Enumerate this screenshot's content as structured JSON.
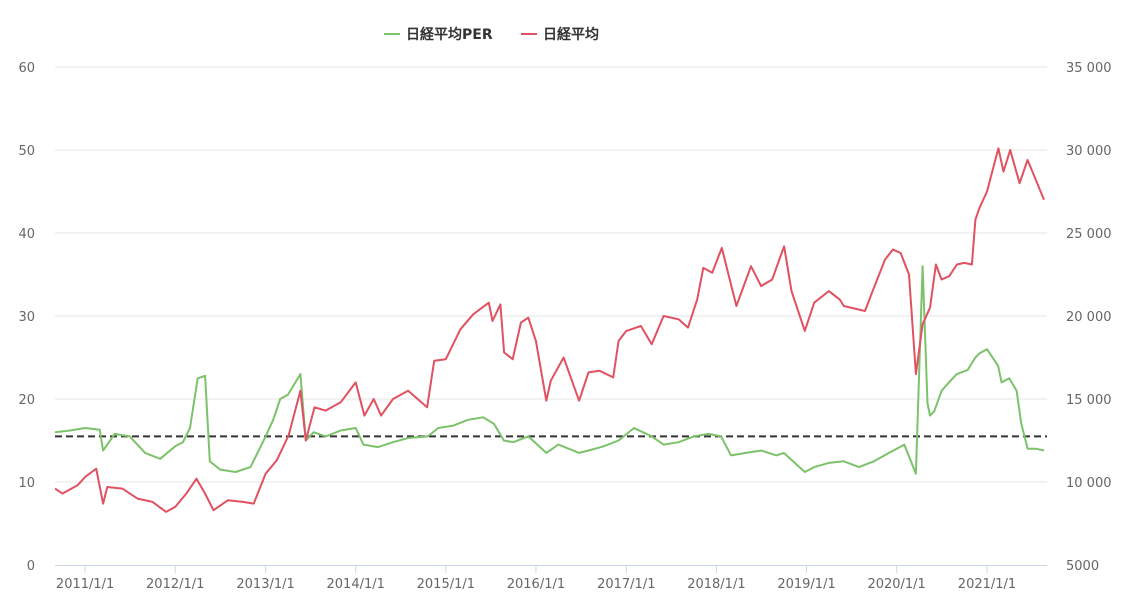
{
  "chart_data": {
    "type": "line",
    "legend": {
      "placement": "top-center"
    },
    "series": [
      {
        "name": "日経平均PER",
        "axis": "left",
        "color": "#7cc26a",
        "x": [
          "2010/9/1",
          "2010/11/1",
          "2011/1/1",
          "2011/3/1",
          "2011/3/15",
          "2011/5/1",
          "2011/7/1",
          "2011/9/1",
          "2011/11/1",
          "2012/1/1",
          "2012/2/1",
          "2012/3/1",
          "2012/4/1",
          "2012/5/1",
          "2012/5/20",
          "2012/7/1",
          "2012/9/1",
          "2012/11/1",
          "2013/1/1",
          "2013/2/1",
          "2013/3/1",
          "2013/4/1",
          "2013/5/22",
          "2013/6/13",
          "2013/7/15",
          "2013/9/1",
          "2013/11/1",
          "2014/1/1",
          "2014/2/1",
          "2014/4/1",
          "2014/6/1",
          "2014/8/1",
          "2014/10/20",
          "2014/12/1",
          "2015/2/1",
          "2015/4/1",
          "2015/6/1",
          "2015/7/15",
          "2015/8/24",
          "2015/10/1",
          "2015/12/1",
          "2016/2/12",
          "2016/4/1",
          "2016/6/24",
          "2016/8/1",
          "2016/10/1",
          "2016/12/1",
          "2017/2/1",
          "2017/4/14",
          "2017/6/1",
          "2017/8/1",
          "2017/10/1",
          "2017/12/1",
          "2018/1/20",
          "2018/3/1",
          "2018/5/1",
          "2018/7/1",
          "2018/9/1",
          "2018/10/1",
          "2018/12/25",
          "2019/2/1",
          "2019/4/1",
          "2019/6/1",
          "2019/8/1",
          "2019/10/1",
          "2019/12/1",
          "2020/2/1",
          "2020/3/19",
          "2020/4/15",
          "2020/5/5",
          "2020/5/15",
          "2020/6/1",
          "2020/7/1",
          "2020/8/15",
          "2020/9/1",
          "2020/10/15",
          "2020/11/15",
          "2020/12/1",
          "2021/1/1",
          "2021/2/15",
          "2021/3/1",
          "2021/4/1",
          "2021/5/1",
          "2021/5/20",
          "2021/6/15",
          "2021/7/20",
          "2021/8/20"
        ],
        "values": [
          16.0,
          16.2,
          16.5,
          16.3,
          13.8,
          15.8,
          15.5,
          13.5,
          12.8,
          14.3,
          14.8,
          16.5,
          22.5,
          22.8,
          12.5,
          11.5,
          11.2,
          11.8,
          15.5,
          17.5,
          20.0,
          20.5,
          23.0,
          15.0,
          16.0,
          15.5,
          16.2,
          16.5,
          14.5,
          14.2,
          14.8,
          15.3,
          15.5,
          16.5,
          16.8,
          17.5,
          17.8,
          17.0,
          15.0,
          14.8,
          15.5,
          13.5,
          14.5,
          13.5,
          13.8,
          14.3,
          15.0,
          16.5,
          15.5,
          14.5,
          14.8,
          15.5,
          15.8,
          15.5,
          13.2,
          13.5,
          13.8,
          13.2,
          13.5,
          11.2,
          11.8,
          12.3,
          12.5,
          11.8,
          12.5,
          13.5,
          14.5,
          11.0,
          36.0,
          19.5,
          18.0,
          18.5,
          21.0,
          22.5,
          23.0,
          23.5,
          25.0,
          25.5,
          26.0,
          24.0,
          22.0,
          22.5,
          21.0,
          17.0,
          14.0,
          14.0,
          13.8
        ]
      },
      {
        "name": "日経平均",
        "axis": "right",
        "color": "#e05161",
        "x": [
          "2010/9/1",
          "2010/10/1",
          "2010/12/1",
          "2011/1/1",
          "2011/2/15",
          "2011/3/15",
          "2011/4/1",
          "2011/6/1",
          "2011/8/1",
          "2011/10/1",
          "2011/11/25",
          "2012/1/1",
          "2012/2/15",
          "2012/3/27",
          "2012/5/1",
          "2012/6/4",
          "2012/8/1",
          "2012/10/1",
          "2012/11/14",
          "2013/1/1",
          "2013/2/15",
          "2013/4/4",
          "2013/5/22",
          "2013/6/13",
          "2013/7/18",
          "2013/9/1",
          "2013/11/1",
          "2014/1/1",
          "2014/2/5",
          "2014/3/15",
          "2014/4/14",
          "2014/6/1",
          "2014/8/1",
          "2014/10/17",
          "2014/11/15",
          "2015/1/1",
          "2015/3/1",
          "2015/4/22",
          "2015/6/24",
          "2015/7/9",
          "2015/8/10",
          "2015/8/25",
          "2015/9/29",
          "2015/11/1",
          "2015/12/1",
          "2016/1/1",
          "2016/2/12",
          "2016/3/1",
          "2016/4/22",
          "2016/6/24",
          "2016/8/1",
          "2016/9/15",
          "2016/11/9",
          "2016/12/1",
          "2017/1/1",
          "2017/3/1",
          "2017/4/14",
          "2017/6/1",
          "2017/8/1",
          "2017/9/8",
          "2017/10/15",
          "2017/11/9",
          "2017/12/15",
          "2018/1/23",
          "2018/3/23",
          "2018/5/21",
          "2018/7/1",
          "2018/8/15",
          "2018/10/2",
          "2018/11/1",
          "2018/12/25",
          "2019/2/1",
          "2019/4/1",
          "2019/5/15",
          "2019/6/1",
          "2019/8/26",
          "2019/10/1",
          "2019/11/15",
          "2019/12/17",
          "2020/1/17",
          "2020/2/20",
          "2020/3/19",
          "2020/4/15",
          "2020/5/15",
          "2020/6/8",
          "2020/7/1",
          "2020/8/1",
          "2020/9/1",
          "2020/10/1",
          "2020/11/1",
          "2020/11/15",
          "2020/12/1",
          "2021/1/1",
          "2021/2/16",
          "2021/3/9",
          "2021/4/5",
          "2021/5/13",
          "2021/6/14",
          "2021/7/1",
          "2021/8/20"
        ],
        "values": [
          9600,
          9300,
          9800,
          10300,
          10800,
          8700,
          9700,
          9600,
          9000,
          8800,
          8200,
          8500,
          9300,
          10200,
          9300,
          8300,
          8900,
          8800,
          8700,
          10500,
          11300,
          12800,
          15500,
          12500,
          14500,
          14300,
          14800,
          16000,
          14000,
          15000,
          14000,
          15000,
          15500,
          14500,
          17300,
          17400,
          19200,
          20100,
          20800,
          19700,
          20700,
          17800,
          17400,
          19600,
          19900,
          18500,
          14900,
          16100,
          17500,
          14900,
          16600,
          16700,
          16300,
          18500,
          19100,
          19400,
          18300,
          20000,
          19800,
          19300,
          21000,
          22900,
          22600,
          24100,
          20600,
          23000,
          21800,
          22200,
          24200,
          21500,
          19100,
          20800,
          21500,
          21000,
          20600,
          20300,
          21700,
          23400,
          24000,
          23800,
          22500,
          16500,
          19500,
          20500,
          23100,
          22200,
          22400,
          23100,
          23200,
          23100,
          25800,
          26500,
          27500,
          30100,
          28700,
          30000,
          28000,
          29400,
          28800,
          27000
        ]
      }
    ],
    "reference_line": {
      "axis": "left",
      "value": 15.5,
      "style": "dashed",
      "color": "#333333"
    },
    "x_ticks": [
      "2011/1/1",
      "2012/1/1",
      "2013/1/1",
      "2014/1/1",
      "2015/1/1",
      "2016/1/1",
      "2017/1/1",
      "2018/1/1",
      "2019/1/1",
      "2020/1/1",
      "2021/1/1"
    ],
    "x_range": [
      "2010/9/1",
      "2021/9/1"
    ],
    "y_left": {
      "ylim": [
        0,
        60
      ],
      "ticks": [
        "0",
        "10",
        "20",
        "30",
        "40",
        "50",
        "60"
      ]
    },
    "y_right": {
      "ylim": [
        5000,
        35000
      ],
      "ticks": [
        "5000",
        "10 000",
        "15 000",
        "20 000",
        "25 000",
        "30 000",
        "35 000"
      ]
    },
    "grid": true
  }
}
